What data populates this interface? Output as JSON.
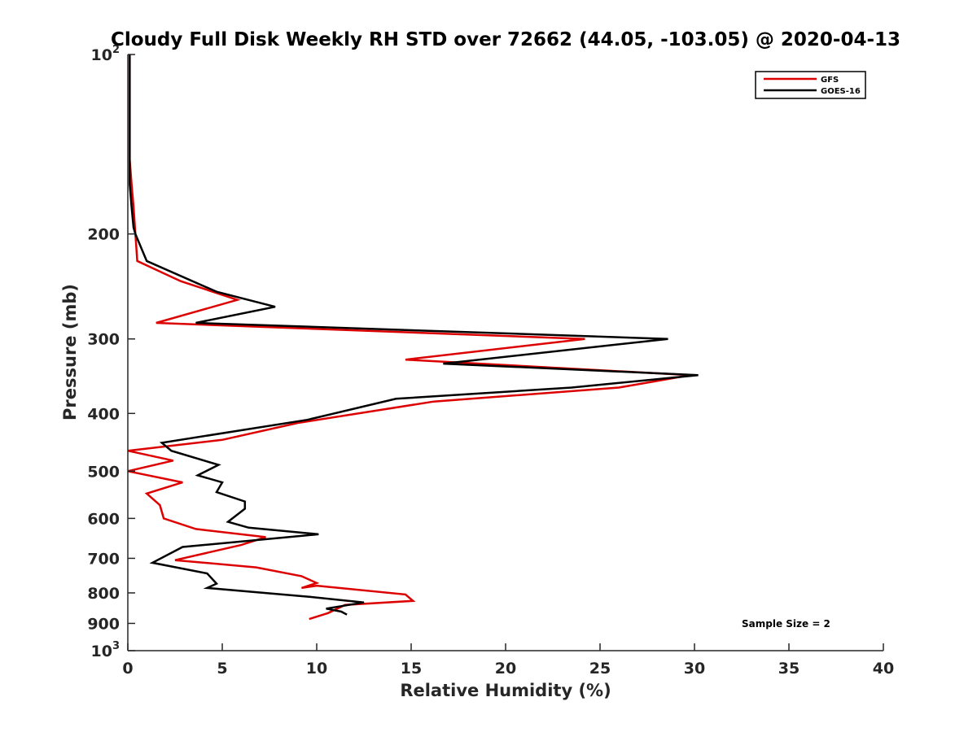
{
  "chart_data": {
    "type": "line",
    "title": "Cloudy Full Disk Weekly RH STD over 72662 (44.05, -103.05) @ 2020-04-13",
    "xlabel": "Relative Humidity (%)",
    "ylabel": "Pressure (mb)",
    "xlim": [
      0,
      40
    ],
    "ylim": [
      100,
      1000
    ],
    "y_scale": "log",
    "y_reversed": true,
    "x_ticks": [
      "0",
      "5",
      "10",
      "15",
      "20",
      "25",
      "30",
      "35",
      "40"
    ],
    "y_ticks": [
      {
        "value": 100,
        "label": "10",
        "sup": "2"
      },
      {
        "value": 200,
        "label": "200",
        "sup": ""
      },
      {
        "value": 300,
        "label": "300",
        "sup": ""
      },
      {
        "value": 400,
        "label": "400",
        "sup": ""
      },
      {
        "value": 500,
        "label": "500",
        "sup": ""
      },
      {
        "value": 600,
        "label": "600",
        "sup": ""
      },
      {
        "value": 700,
        "label": "700",
        "sup": ""
      },
      {
        "value": 800,
        "label": "800",
        "sup": ""
      },
      {
        "value": 900,
        "label": "900",
        "sup": ""
      },
      {
        "value": 1000,
        "label": "10",
        "sup": "3"
      }
    ],
    "grid": false,
    "legend_position": "top-right",
    "annotation": "Sample Size = 2",
    "series": [
      {
        "name": "GFS",
        "color": "#dd0000",
        "points": [
          [
            0.1,
            100
          ],
          [
            0.1,
            150
          ],
          [
            0.2,
            165
          ],
          [
            0.3,
            180
          ],
          [
            0.4,
            200
          ],
          [
            0.5,
            222
          ],
          [
            2.8,
            240
          ],
          [
            5.8,
            258
          ],
          [
            1.5,
            282
          ],
          [
            24.2,
            300
          ],
          [
            14.7,
            325
          ],
          [
            29.8,
            345
          ],
          [
            26.0,
            362
          ],
          [
            16.2,
            382
          ],
          [
            9.0,
            415
          ],
          [
            5.0,
            443
          ],
          [
            0.0,
            462
          ],
          [
            2.4,
            480
          ],
          [
            0.0,
            500
          ],
          [
            2.9,
            522
          ],
          [
            1.0,
            545
          ],
          [
            1.7,
            570
          ],
          [
            1.9,
            600
          ],
          [
            3.6,
            625
          ],
          [
            7.3,
            645
          ],
          [
            6.0,
            665
          ],
          [
            2.5,
            705
          ],
          [
            6.8,
            725
          ],
          [
            9.2,
            750
          ],
          [
            10.0,
            770
          ],
          [
            9.2,
            785
          ],
          [
            10.0,
            778
          ],
          [
            14.7,
            805
          ],
          [
            15.1,
            825
          ],
          [
            11.5,
            838
          ],
          [
            10.6,
            865
          ],
          [
            9.6,
            885
          ]
        ]
      },
      {
        "name": "GOES-16",
        "color": "#000000",
        "points": [
          [
            0.1,
            100
          ],
          [
            0.1,
            150
          ],
          [
            0.1,
            165
          ],
          [
            0.2,
            180
          ],
          [
            0.3,
            195
          ],
          [
            0.4,
            200
          ],
          [
            1.0,
            222
          ],
          [
            4.7,
            250
          ],
          [
            7.8,
            265
          ],
          [
            3.6,
            282
          ],
          [
            28.6,
            300
          ],
          [
            16.7,
            330
          ],
          [
            30.2,
            345
          ],
          [
            23.5,
            362
          ],
          [
            14.2,
            378
          ],
          [
            9.5,
            410
          ],
          [
            1.8,
            448
          ],
          [
            2.3,
            462
          ],
          [
            4.8,
            488
          ],
          [
            3.7,
            508
          ],
          [
            5.0,
            522
          ],
          [
            4.7,
            542
          ],
          [
            6.2,
            562
          ],
          [
            6.2,
            578
          ],
          [
            5.3,
            608
          ],
          [
            6.4,
            622
          ],
          [
            10.1,
            638
          ],
          [
            2.9,
            670
          ],
          [
            1.3,
            712
          ],
          [
            4.2,
            742
          ],
          [
            4.7,
            772
          ],
          [
            4.2,
            785
          ],
          [
            9.6,
            812
          ],
          [
            12.5,
            830
          ],
          [
            10.5,
            850
          ],
          [
            11.3,
            860
          ],
          [
            11.6,
            870
          ]
        ]
      }
    ]
  }
}
